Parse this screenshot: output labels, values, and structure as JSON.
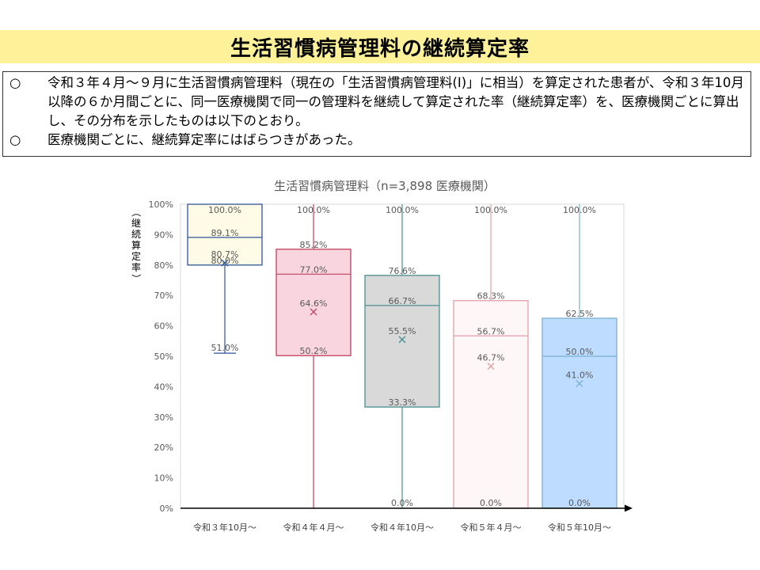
{
  "slide": {
    "title": "生活習慣病管理料の継続算定率",
    "bullets": [
      {
        "marker": "○",
        "text": "令和３年４月～９月に生活習慣病管理料（現在の「生活習慣病管理料(Ⅰ)」に相当）を算定された患者が、令和３年10月以降の６か月間ごとに、同一医療機関で同一の管理料を継続して算定された率（継続算定率）を、医療機関ごとに算出し、その分布を示したものは以下のとおり。"
      },
      {
        "marker": "○",
        "text": "医療機関ごとに、継続算定率にはばらつきがあった。"
      }
    ]
  },
  "chart_data": {
    "type": "box",
    "title": "生活習慣病管理料（n=3,898 医療機関）",
    "ylabel": "（継続算定率）",
    "xlabel": "",
    "ylim": [
      0,
      100
    ],
    "yticks": [
      "0%",
      "10%",
      "20%",
      "30%",
      "40%",
      "50%",
      "60%",
      "70%",
      "80%",
      "90%",
      "100%"
    ],
    "grid": false,
    "categories": [
      "令和３年10月～",
      "令和４年４月～",
      "令和４年10月～",
      "令和５年４月～",
      "令和５年10月～"
    ],
    "boxes": [
      {
        "category": "令和３年10月～",
        "min": 51.0,
        "q1": 80.0,
        "median": 89.1,
        "q3": 100.0,
        "max": 100.0,
        "mean": 80.7,
        "labels": {
          "min": "51.0%",
          "q1": "80.0%",
          "median": "89.1%",
          "q3": "100.0%",
          "mean": "80.7%"
        },
        "fill": "#fffbe6",
        "stroke": "#2f5597"
      },
      {
        "category": "令和４年４月～",
        "min": 0.0,
        "q1": 50.2,
        "median": 77.0,
        "q3": 85.2,
        "max": 100.0,
        "mean": 64.6,
        "labels": {
          "min": "",
          "q1": "50.2%",
          "median": "77.0%",
          "q3": "85.2%",
          "max": "100.0%",
          "mean": "64.6%"
        },
        "fill": "#f9d6df",
        "stroke": "#c0405f"
      },
      {
        "category": "令和４年10月～",
        "min": 0.0,
        "q1": 33.3,
        "median": 66.7,
        "q3": 76.6,
        "max": 100.0,
        "mean": 55.5,
        "labels": {
          "min": "0.0%",
          "q1": "33.3%",
          "median": "66.7%",
          "q3": "76.6%",
          "max": "100.0%",
          "mean": "55.5%"
        },
        "fill": "#d9d9d9",
        "stroke": "#4a9090"
      },
      {
        "category": "令和５年４月～",
        "min": 0.0,
        "q1": 0.0,
        "median": 56.7,
        "q3": 68.3,
        "max": 100.0,
        "mean": 46.7,
        "labels": {
          "min": "0.0%",
          "q3": "68.3%",
          "median": "56.7%",
          "max": "100.0%",
          "mean": "46.7%"
        },
        "fill": "#fff7f7",
        "stroke": "#e0a0a8"
      },
      {
        "category": "令和５年10月～",
        "min": 0.0,
        "q1": 0.0,
        "median": 50.0,
        "q3": 62.5,
        "max": 100.0,
        "mean": 41.0,
        "labels": {
          "min": "0.0%",
          "q3": "62.5%",
          "median": "50.0%",
          "max": "100.0%",
          "mean": "41.0%"
        },
        "fill": "#bddcff",
        "stroke": "#7ab0cc"
      }
    ]
  }
}
